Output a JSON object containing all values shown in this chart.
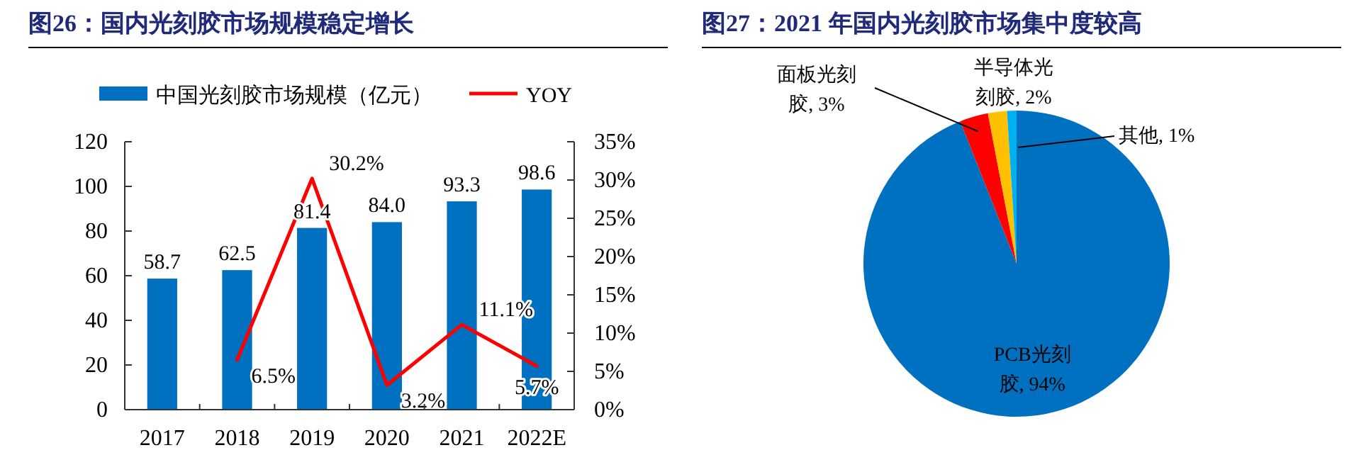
{
  "chart_data": [
    {
      "type": "bar",
      "title": "图26：国内光刻胶市场规模稳定增长",
      "categories": [
        "2017",
        "2018",
        "2019",
        "2020",
        "2021",
        "2022E"
      ],
      "series": [
        {
          "name": "中国光刻胶市场规模（亿元）",
          "type": "bar",
          "color": "#0070c0",
          "values": [
            58.7,
            62.5,
            81.4,
            84.0,
            93.3,
            98.6
          ],
          "value_labels": [
            "58.7",
            "62.5",
            "81.4",
            "84.0",
            "93.3",
            "98.6"
          ]
        },
        {
          "name": "YOY",
          "type": "line",
          "axis": "y2",
          "color": "#ff0000",
          "values": [
            null,
            6.5,
            30.2,
            3.2,
            11.1,
            5.7
          ],
          "value_labels": [
            null,
            "6.5%",
            "30.2%",
            "3.2%",
            "11.1%",
            "5.7%"
          ]
        }
      ],
      "ylim": [
        0,
        120
      ],
      "yticks": [
        0,
        20,
        40,
        60,
        80,
        100,
        120
      ],
      "y2lim": [
        0,
        35
      ],
      "y2ticks": [
        {
          "value": 0,
          "label": "0%"
        },
        {
          "value": 5,
          "label": "5%"
        },
        {
          "value": 10,
          "label": "10%"
        },
        {
          "value": 15,
          "label": "15%"
        },
        {
          "value": 20,
          "label": "20%"
        },
        {
          "value": 25,
          "label": "25%"
        },
        {
          "value": 30,
          "label": "30%"
        },
        {
          "value": 35,
          "label": "35%"
        }
      ],
      "legend": "top",
      "grid": false,
      "marker": "none",
      "line_style": "solid"
    },
    {
      "type": "pie",
      "title": "图27：2021 年国内光刻胶市场集中度较高",
      "categories": [
        "PCB光刻胶",
        "面板光刻胶",
        "半导体光刻胶",
        "其他"
      ],
      "values": [
        94,
        3,
        2,
        1
      ],
      "colors": [
        "#0070c0",
        "#ff0000",
        "#ffc000",
        "#00b0f0"
      ],
      "value_labels": [
        "94%",
        "3%",
        "2%",
        "1%"
      ]
    }
  ]
}
